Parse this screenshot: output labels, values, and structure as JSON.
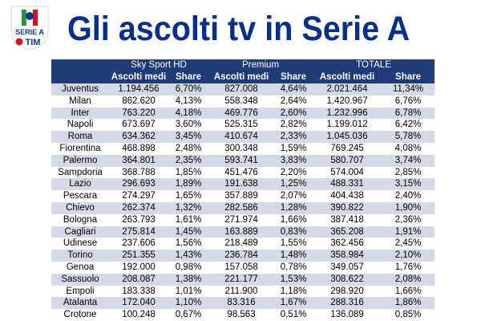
{
  "logo": {
    "line1": "SERIE A",
    "line2": "TIM",
    "colors": {
      "blue": "#0a3b8c",
      "red": "#d4141c",
      "green": "#1e9a3c"
    }
  },
  "title": "Gli ascolti tv in Serie A",
  "colors": {
    "header_bg": "#1f3b78",
    "stripe": "#d4d9e8",
    "title": "#0a2f86"
  },
  "table": {
    "groups": [
      "Sky Sport HD",
      "Premium",
      "TOTALE"
    ],
    "columns": [
      "Ascolti medi",
      "Share",
      "Ascolti medi",
      "Share",
      "Ascolti medi",
      "Share"
    ],
    "rows": [
      [
        "Juventus",
        "1.194.456",
        "6,70%",
        "827.008",
        "4,64%",
        "2.021.464",
        "11,34%"
      ],
      [
        "Milan",
        "862.620",
        "4,13%",
        "558.348",
        "2,64%",
        "1.420.967",
        "6,76%"
      ],
      [
        "Inter",
        "763.220",
        "4,18%",
        "469.776",
        "2,60%",
        "1.232.996",
        "6,78%"
      ],
      [
        "Napoli",
        "673.697",
        "3,60%",
        "525.315",
        "2,82%",
        "1.199.012",
        "6,42%"
      ],
      [
        "Roma",
        "634.362",
        "3,45%",
        "410.674",
        "2,33%",
        "1.045.036",
        "5,78%"
      ],
      [
        "Fiorentina",
        "468.898",
        "2,48%",
        "300.348",
        "1,59%",
        "769.245",
        "4,08%"
      ],
      [
        "Palermo",
        "364.801",
        "2,35%",
        "593.741",
        "3,83%",
        "580.707",
        "3,74%"
      ],
      [
        "Sampdoria",
        "368.788",
        "1,85%",
        "451.476",
        "2,20%",
        "574.004",
        "2,85%"
      ],
      [
        "Lazio",
        "296.693",
        "1,89%",
        "191.638",
        "1,25%",
        "488.331",
        "3,15%"
      ],
      [
        "Pescara",
        "274.297",
        "1,65%",
        "357.889",
        "2,07%",
        "404.438",
        "2,40%"
      ],
      [
        "Chievo",
        "262.374",
        "1,32%",
        "282.586",
        "1,28%",
        "390.822",
        "1,90%"
      ],
      [
        "Bologna",
        "263.793",
        "1,61%",
        "271.974",
        "1,66%",
        "387.418",
        "2,36%"
      ],
      [
        "Cagliari",
        "275.814",
        "1,45%",
        "163.889",
        "0,83%",
        "365.208",
        "1,91%"
      ],
      [
        "Udinese",
        "237.606",
        "1,56%",
        "218.489",
        "1,55%",
        "362.456",
        "2,45%"
      ],
      [
        "Torino",
        "251.355",
        "1,43%",
        "236.784",
        "1,48%",
        "358.984",
        "2,10%"
      ],
      [
        "Genoa",
        "192.000",
        "0,98%",
        "157.058",
        "0,78%",
        "349.057",
        "1,76%"
      ],
      [
        "Sassuolo",
        "208.087",
        "1,38%",
        "221.177",
        "1,53%",
        "308.622",
        "2,08%"
      ],
      [
        "Empoli",
        "183.338",
        "1,01%",
        "211.900",
        "1,18%",
        "298.920",
        "1,66%"
      ],
      [
        "Atalanta",
        "172.040",
        "1,10%",
        "83.316",
        "1,67%",
        "288.316",
        "1,86%"
      ],
      [
        "Crotone",
        "100.248",
        "0,67%",
        "98.563",
        "0,51%",
        "136.089",
        "0,85%"
      ]
    ]
  }
}
